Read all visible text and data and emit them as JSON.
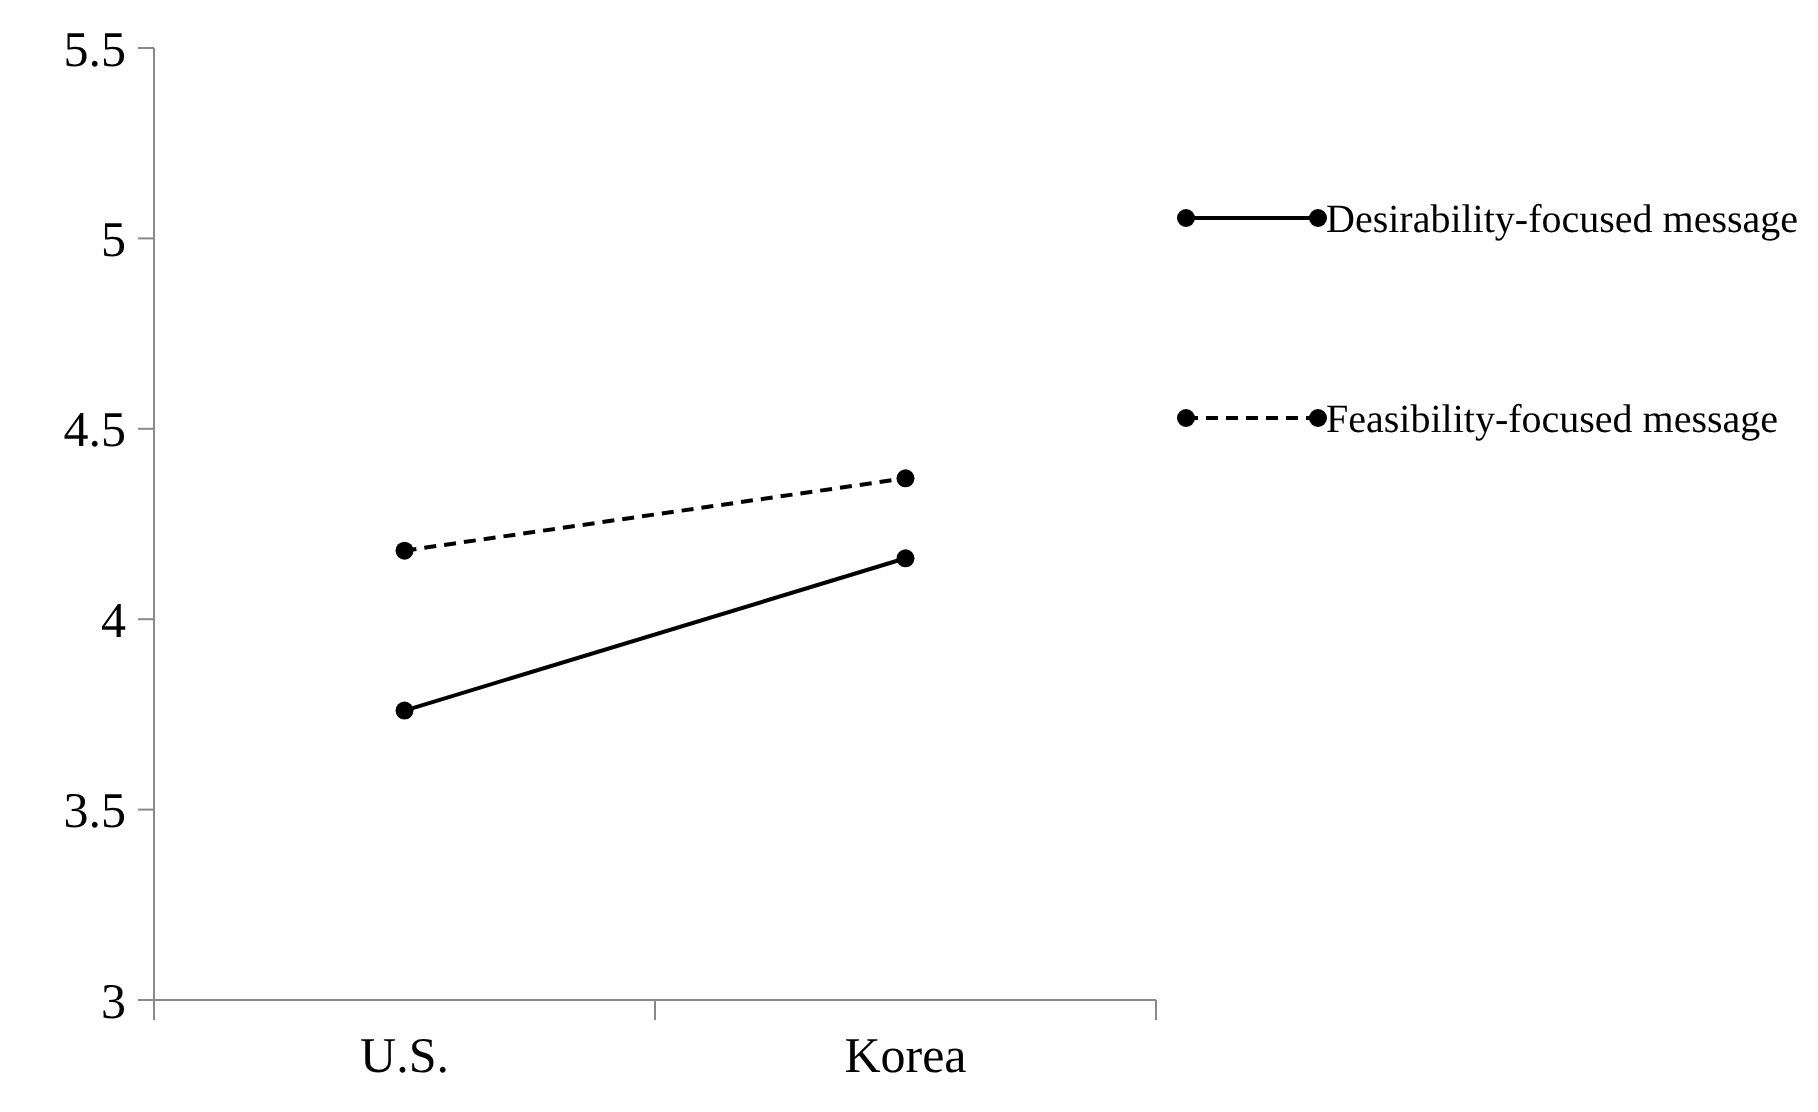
{
  "chart_data": {
    "type": "line",
    "categories": [
      "U.S.",
      "Korea"
    ],
    "series": [
      {
        "name": "Desirability-focused message",
        "color": "#000000",
        "values": [
          3.76,
          4.16
        ],
        "line_style": "solid"
      },
      {
        "name": "Feasibility-focused message",
        "color": "#000000",
        "values": [
          4.18,
          4.37
        ],
        "line_style": "dashed"
      }
    ],
    "ylim": [
      3,
      5.5
    ],
    "yticks": [
      3,
      3.5,
      4,
      4.5,
      5,
      5.5
    ],
    "grid": false,
    "legend": "right",
    "marker": "circle"
  }
}
